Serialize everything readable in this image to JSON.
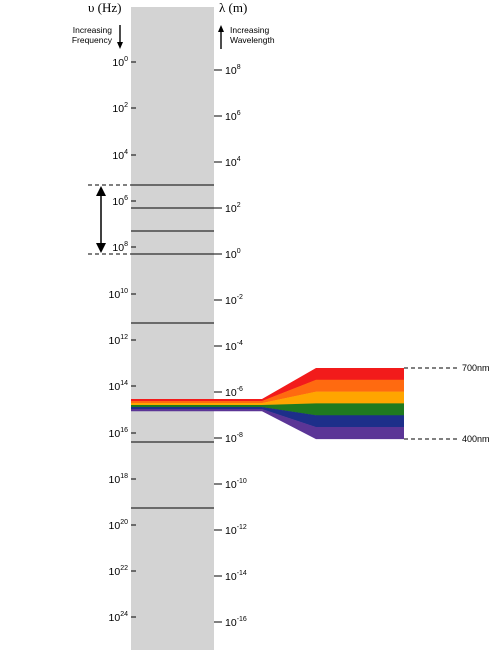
{
  "headers": {
    "frequency": "υ (Hz)",
    "wavelength": "λ (m)"
  },
  "notes": {
    "increasing_frequency": [
      "Increasing",
      "Frequency"
    ],
    "increasing_wavelength": [
      "Increasing",
      "Wavelength"
    ]
  },
  "frequency_ticks": [
    {
      "base": "10",
      "exp": "0"
    },
    {
      "base": "10",
      "exp": "2"
    },
    {
      "base": "10",
      "exp": "4"
    },
    {
      "base": "10",
      "exp": "6"
    },
    {
      "base": "10",
      "exp": "8"
    },
    {
      "base": "10",
      "exp": "10"
    },
    {
      "base": "10",
      "exp": "12"
    },
    {
      "base": "10",
      "exp": "14"
    },
    {
      "base": "10",
      "exp": "16"
    },
    {
      "base": "10",
      "exp": "18"
    },
    {
      "base": "10",
      "exp": "20"
    },
    {
      "base": "10",
      "exp": "22"
    },
    {
      "base": "10",
      "exp": "24"
    }
  ],
  "wavelength_ticks": [
    {
      "base": "10",
      "exp": "8"
    },
    {
      "base": "10",
      "exp": "6"
    },
    {
      "base": "10",
      "exp": "4"
    },
    {
      "base": "10",
      "exp": "2"
    },
    {
      "base": "10",
      "exp": "0"
    },
    {
      "base": "10",
      "exp": "-2"
    },
    {
      "base": "10",
      "exp": "-4"
    },
    {
      "base": "10",
      "exp": "-6"
    },
    {
      "base": "10",
      "exp": "-8"
    },
    {
      "base": "10",
      "exp": "-10"
    },
    {
      "base": "10",
      "exp": "-12"
    },
    {
      "base": "10",
      "exp": "-14"
    },
    {
      "base": "10",
      "exp": "-16"
    }
  ],
  "visible_labels": {
    "top": "700nm",
    "bottom": "400nm"
  },
  "colors": {
    "spectrum_bar": "#d3d3d3",
    "red": "#f21b1b",
    "orange": "#ff6a10",
    "yellow": "#ffa500",
    "green": "#1f7a1f",
    "blue": "#1d2f8a",
    "violet": "#5b3596"
  }
}
